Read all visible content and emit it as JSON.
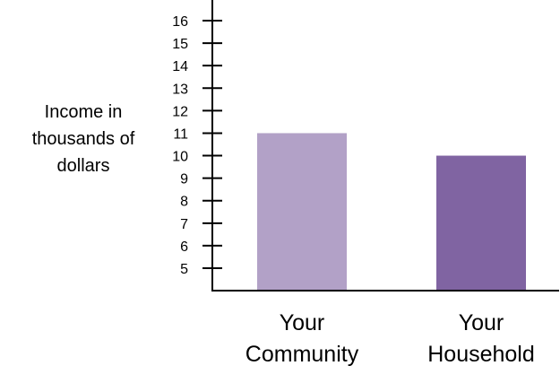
{
  "chart_data": {
    "type": "bar",
    "title": "",
    "ylabel_lines": [
      "Income in",
      "thousands of",
      "dollars"
    ],
    "xlabel": "",
    "categories": [
      {
        "lines": [
          "Your",
          "Community"
        ]
      },
      {
        "lines": [
          "Your",
          "Household"
        ]
      }
    ],
    "values": [
      11,
      10
    ],
    "colors": [
      "#b2a1c7",
      "#8064a2"
    ],
    "ylim": [
      4,
      16
    ],
    "yticks": [
      5,
      6,
      7,
      8,
      9,
      10,
      11,
      12,
      13,
      14,
      15,
      16
    ],
    "grid": false,
    "legend": "none"
  }
}
